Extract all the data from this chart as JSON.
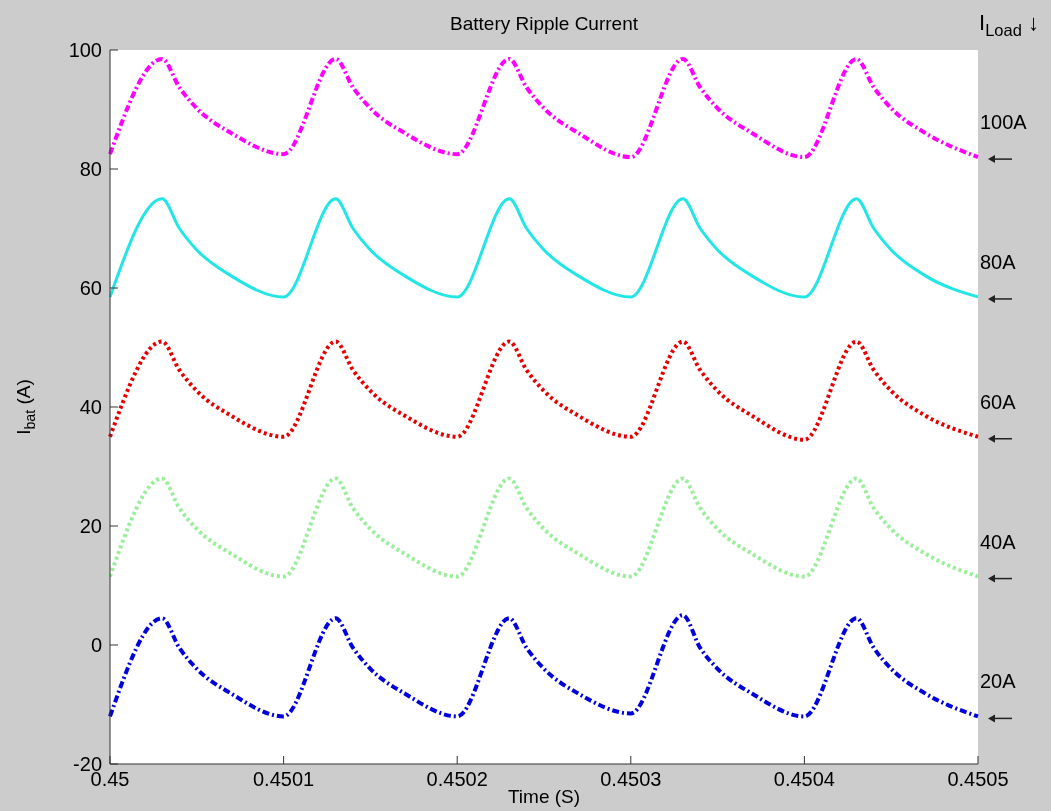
{
  "chart_data": {
    "type": "line",
    "title": "Battery Ripple Current",
    "xlabel": "Time (S)",
    "ylabel": "I$_{bat}$ (A)",
    "legend_title": "I$_{Load}$ ↓",
    "x": [
      0.45,
      0.45003,
      0.45004,
      0.45005,
      0.45007,
      0.4501,
      0.45013,
      0.45014,
      0.45015,
      0.45017,
      0.4502,
      0.45023,
      0.45024,
      0.45025,
      0.45027,
      0.4503,
      0.45033,
      0.45034,
      0.45035,
      0.45037,
      0.4504,
      0.45043,
      0.45044,
      0.45045,
      0.45047,
      0.4505
    ],
    "series": [
      {
        "name": "100A",
        "color": "#ff00ff",
        "line_style": "dashed",
        "values": [
          82.5,
          98.5,
          93.7,
          90.2,
          86,
          82.5,
          98.5,
          93.7,
          90.2,
          86,
          82.5,
          98.5,
          93.7,
          90.2,
          86,
          82,
          98.5,
          93.7,
          90.2,
          86,
          82,
          98.5,
          93.7,
          90.2,
          86,
          82
        ]
      },
      {
        "name": "80A",
        "color": "#22e6e6",
        "line_style": "solid",
        "values": [
          58.5,
          75,
          70,
          66.4,
          62,
          58.5,
          75,
          70,
          66.4,
          62,
          58.5,
          75,
          70,
          66.4,
          62,
          58.5,
          75,
          70,
          66.4,
          62,
          58.5,
          75,
          70,
          66.4,
          62,
          58.5
        ]
      },
      {
        "name": "60A",
        "color": "#e60000",
        "line_style": "dotted",
        "values": [
          35,
          51,
          46.2,
          42.7,
          38.5,
          35,
          51,
          46.2,
          42.7,
          38.5,
          35,
          51,
          46.2,
          42.7,
          38.5,
          35,
          51,
          46.2,
          42.7,
          38.5,
          34.5,
          51,
          46.2,
          42.7,
          38.5,
          35
        ]
      },
      {
        "name": "40A",
        "color": "#99ee99",
        "line_style": "dotted",
        "values": [
          11.5,
          28,
          23,
          19.5,
          15.3,
          11.5,
          28,
          23,
          19.5,
          15.3,
          11.5,
          28,
          23,
          19.5,
          15.3,
          11.5,
          28,
          23,
          19.5,
          15.3,
          11.5,
          28,
          23,
          19.5,
          15.3,
          11.5
        ]
      },
      {
        "name": "20A",
        "color": "#0000dd",
        "line_style": "dashed",
        "values": [
          -12,
          4.5,
          -0.5,
          -4,
          -8.2,
          -12,
          4.5,
          -0.5,
          -4,
          -8.2,
          -12,
          4.5,
          -0.5,
          -4,
          -8.2,
          -11.5,
          5,
          -0.5,
          -4,
          -8.2,
          -12,
          4.5,
          -0.5,
          -4,
          -8.2,
          -12
        ]
      }
    ],
    "xlim": [
      0.45,
      0.4505
    ],
    "xticks": [
      0.45,
      0.4501,
      0.4502,
      0.4503,
      0.4504,
      0.4505
    ],
    "ylim": [
      -20,
      100
    ],
    "yticks": [
      -20,
      0,
      20,
      40,
      60,
      80,
      100
    ],
    "grid": false,
    "legend": "right"
  }
}
